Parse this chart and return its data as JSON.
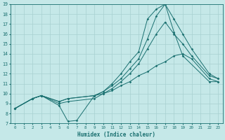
{
  "xlabel": "Humidex (Indice chaleur)",
  "xlim": [
    -0.5,
    23.5
  ],
  "ylim": [
    7,
    19
  ],
  "yticks": [
    7,
    8,
    9,
    10,
    11,
    12,
    13,
    14,
    15,
    16,
    17,
    18,
    19
  ],
  "xticks": [
    0,
    1,
    2,
    3,
    4,
    5,
    6,
    7,
    8,
    9,
    10,
    11,
    12,
    13,
    14,
    15,
    16,
    17,
    18,
    19,
    20,
    21,
    22,
    23
  ],
  "bg_color": "#c5e8e8",
  "grid_color": "#a8d0d0",
  "line_color": "#1a7070",
  "lines": [
    {
      "x": [
        0,
        2,
        3,
        5,
        6,
        7,
        9,
        10,
        11,
        12,
        13,
        14,
        15,
        16,
        17,
        18,
        19,
        22,
        23
      ],
      "y": [
        8.5,
        9.5,
        9.8,
        8.8,
        7.2,
        7.3,
        9.8,
        10.2,
        11.0,
        12.0,
        13.2,
        14.2,
        17.5,
        18.5,
        19.0,
        16.2,
        13.8,
        11.2,
        11.2
      ]
    },
    {
      "x": [
        0,
        2,
        3,
        5,
        6,
        9,
        10,
        11,
        12,
        13,
        14,
        15,
        16,
        17,
        18,
        19,
        20,
        22,
        23
      ],
      "y": [
        8.5,
        9.5,
        9.8,
        9.2,
        9.5,
        9.8,
        10.2,
        10.8,
        11.5,
        12.5,
        13.5,
        15.5,
        17.8,
        19.0,
        17.5,
        16.0,
        14.5,
        12.0,
        11.5
      ]
    },
    {
      "x": [
        0,
        2,
        3,
        5,
        6,
        9,
        10,
        11,
        12,
        13,
        14,
        15,
        16,
        17,
        18,
        19,
        20,
        22,
        23
      ],
      "y": [
        8.5,
        9.5,
        9.8,
        9.0,
        9.2,
        9.5,
        10.0,
        10.5,
        11.2,
        12.0,
        13.0,
        14.5,
        16.0,
        17.2,
        16.0,
        15.0,
        13.8,
        11.8,
        11.5
      ]
    },
    {
      "x": [
        0,
        2,
        3,
        5,
        6,
        9,
        10,
        11,
        12,
        13,
        14,
        15,
        16,
        17,
        18,
        19,
        20,
        22,
        23
      ],
      "y": [
        8.5,
        9.5,
        9.8,
        9.2,
        9.5,
        9.8,
        10.0,
        10.3,
        10.8,
        11.2,
        11.8,
        12.2,
        12.8,
        13.2,
        13.8,
        14.0,
        13.5,
        11.5,
        11.2
      ]
    }
  ]
}
